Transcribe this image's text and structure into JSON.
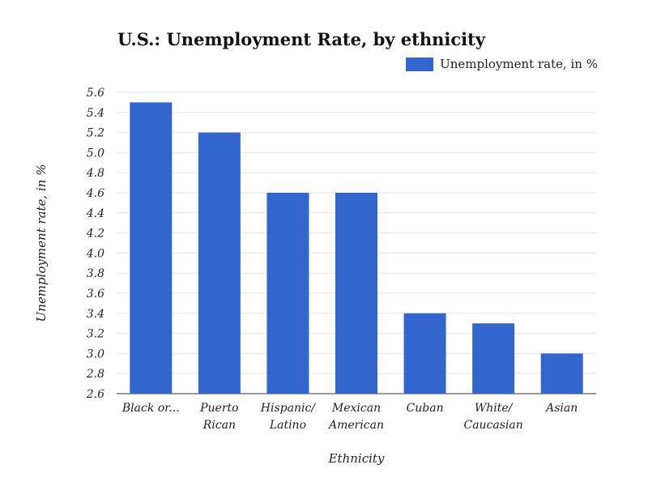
{
  "chart_data": {
    "type": "bar",
    "title": "U.S.: Unemployment Rate, by ethnicity",
    "xlabel": "Ethnicity",
    "ylabel": "Unemployment rate, in %",
    "categories": [
      [
        "Black or..."
      ],
      [
        "Puerto",
        "Rican"
      ],
      [
        "Hispanic/",
        "Latino"
      ],
      [
        "Mexican",
        "American"
      ],
      [
        "Cuban"
      ],
      [
        "White/",
        "Caucasian"
      ],
      [
        "Asian"
      ]
    ],
    "series": [
      {
        "name": "Unemployment rate, in %",
        "values": [
          5.5,
          5.2,
          4.6,
          4.6,
          3.4,
          3.3,
          3.0
        ],
        "color": "#3366cc"
      }
    ],
    "ylim": [
      2.6,
      5.6
    ],
    "yticks": [
      "2.6",
      "2.8",
      "3.0",
      "3.2",
      "3.4",
      "3.6",
      "3.8",
      "4.0",
      "4.2",
      "4.4",
      "4.6",
      "4.8",
      "5.0",
      "5.2",
      "5.4",
      "5.6"
    ],
    "grid": true,
    "legend_position": "top-right",
    "gridline_color": "#e6e6e6",
    "axis_color": "#333333"
  }
}
